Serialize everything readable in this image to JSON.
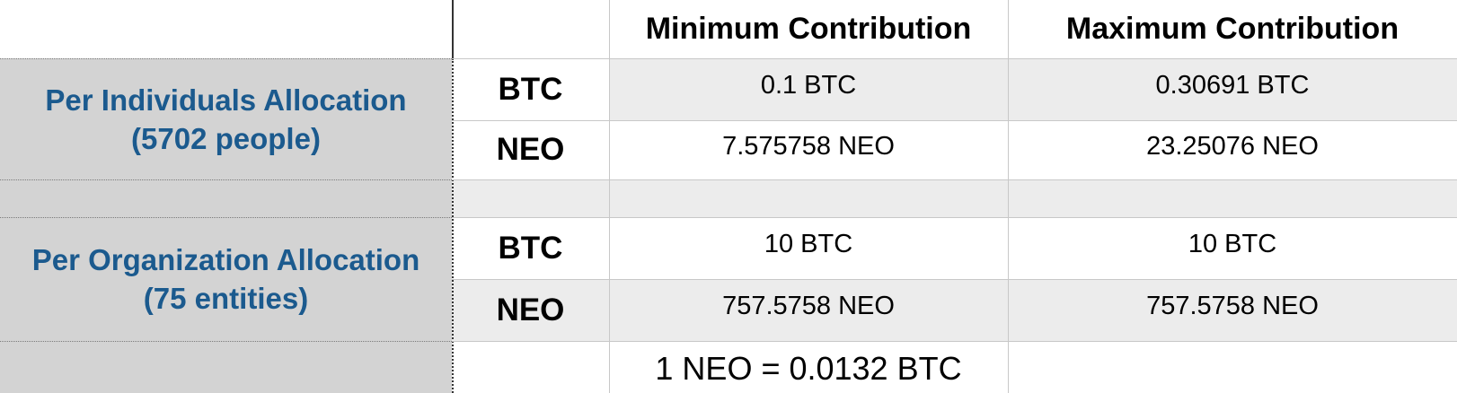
{
  "header": {
    "min_label": "Minimum Contribution",
    "max_label": "Maximum Contribution"
  },
  "groups": [
    {
      "label_line1": "Per Individuals Allocation",
      "label_line2": "(5702 people)",
      "rows": [
        {
          "currency": "BTC",
          "min": "0.1 BTC",
          "max": "0.30691 BTC"
        },
        {
          "currency": "NEO",
          "min": "7.575758 NEO",
          "max": "23.25076 NEO"
        }
      ]
    },
    {
      "label_line1": "Per Organization Allocation",
      "label_line2": "(75 entities)",
      "rows": [
        {
          "currency": "BTC",
          "min": "10 BTC",
          "max": "10 BTC"
        },
        {
          "currency": "NEO",
          "min": "757.5758 NEO",
          "max": "757.5758 NEO"
        }
      ]
    }
  ],
  "footer": {
    "exchange_rate": "1 NEO = 0.0132 BTC"
  },
  "colors": {
    "label_text": "#1b5a8e",
    "label_bg": "#d3d3d3",
    "row_alt_bg": "#ececec"
  }
}
